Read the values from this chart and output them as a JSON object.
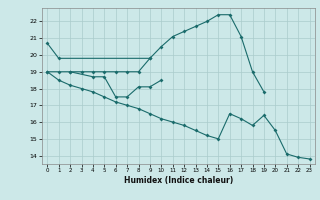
{
  "xlabel": "Humidex (Indice chaleur)",
  "bg_color": "#cce8e8",
  "grid_color": "#aacccc",
  "line_color": "#1a6b6b",
  "xlim": [
    -0.5,
    23.5
  ],
  "ylim": [
    13.5,
    22.8
  ],
  "yticks": [
    14,
    15,
    16,
    17,
    18,
    19,
    20,
    21,
    22
  ],
  "xticks": [
    0,
    1,
    2,
    3,
    4,
    5,
    6,
    7,
    8,
    9,
    10,
    11,
    12,
    13,
    14,
    15,
    16,
    17,
    18,
    19,
    20,
    21,
    22,
    23
  ],
  "s1x": [
    0,
    1,
    9
  ],
  "s1y": [
    20.7,
    19.8,
    19.8
  ],
  "s2x": [
    2,
    4,
    5,
    6,
    7,
    8,
    9,
    10
  ],
  "s2y": [
    19.0,
    18.7,
    18.7,
    17.5,
    17.5,
    18.1,
    18.1,
    18.5
  ],
  "s3x": [
    0,
    1,
    2,
    3,
    4,
    5,
    6,
    7,
    8,
    9,
    10,
    11,
    12,
    13,
    14,
    15,
    16,
    17,
    18,
    19
  ],
  "s3y": [
    19.0,
    19.0,
    19.0,
    19.0,
    19.0,
    19.0,
    19.0,
    19.0,
    19.0,
    19.8,
    20.5,
    21.1,
    21.4,
    21.7,
    22.0,
    22.4,
    22.4,
    21.1,
    19.0,
    17.8
  ],
  "s4x": [
    0,
    1,
    2,
    3,
    4,
    5,
    6,
    7,
    8,
    9,
    10,
    11,
    12,
    13,
    14,
    15,
    16,
    17,
    18,
    19,
    20,
    21,
    22,
    23
  ],
  "s4y": [
    19.0,
    18.5,
    18.2,
    18.0,
    17.8,
    17.5,
    17.2,
    17.0,
    16.8,
    16.5,
    16.2,
    16.0,
    15.8,
    15.5,
    15.2,
    15.0,
    16.5,
    16.2,
    15.8,
    16.4,
    15.5,
    14.1,
    13.9,
    13.8
  ]
}
